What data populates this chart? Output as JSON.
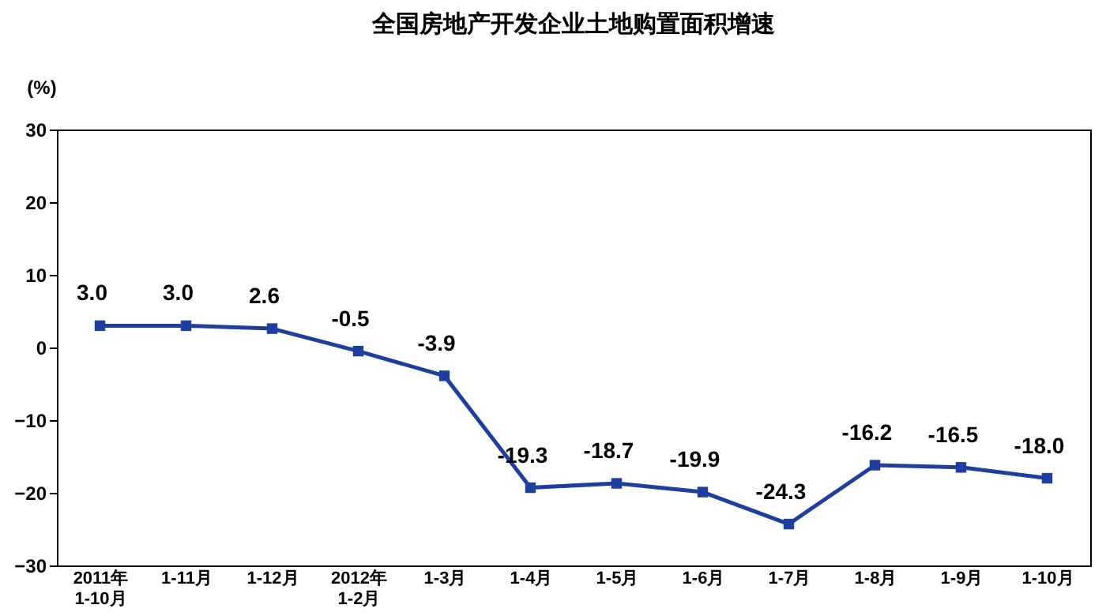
{
  "chart_data": {
    "type": "line",
    "title": "全国房地产开发企业土地购置面积增速",
    "ylabel": "(%)",
    "categories": [
      "2011年\n1-10月",
      "1-11月",
      "1-12月",
      "2012年\n1-2月",
      "1-3月",
      "1-4月",
      "1-5月",
      "1-6月",
      "1-7月",
      "1-8月",
      "1-9月",
      "1-10月"
    ],
    "series": [
      {
        "color": "#1f3f9f",
        "values": [
          3.0,
          3.0,
          2.6,
          -0.5,
          -3.9,
          -19.3,
          -18.7,
          -19.9,
          -24.3,
          -16.2,
          -16.5,
          -18.0
        ]
      }
    ],
    "ylim": [
      -30,
      30
    ],
    "yticks": [
      -30,
      -20,
      -10,
      0,
      10,
      20,
      30
    ],
    "value_labels": [
      "3.0",
      "3.0",
      "2.6",
      "-0.5",
      "-3.9",
      "-19.3",
      "-18.7",
      "-19.9",
      "-24.3",
      "-16.2",
      "-16.5",
      "-18.0"
    ],
    "marker": "square",
    "grid": false,
    "legend": false,
    "line_style": "solid"
  }
}
